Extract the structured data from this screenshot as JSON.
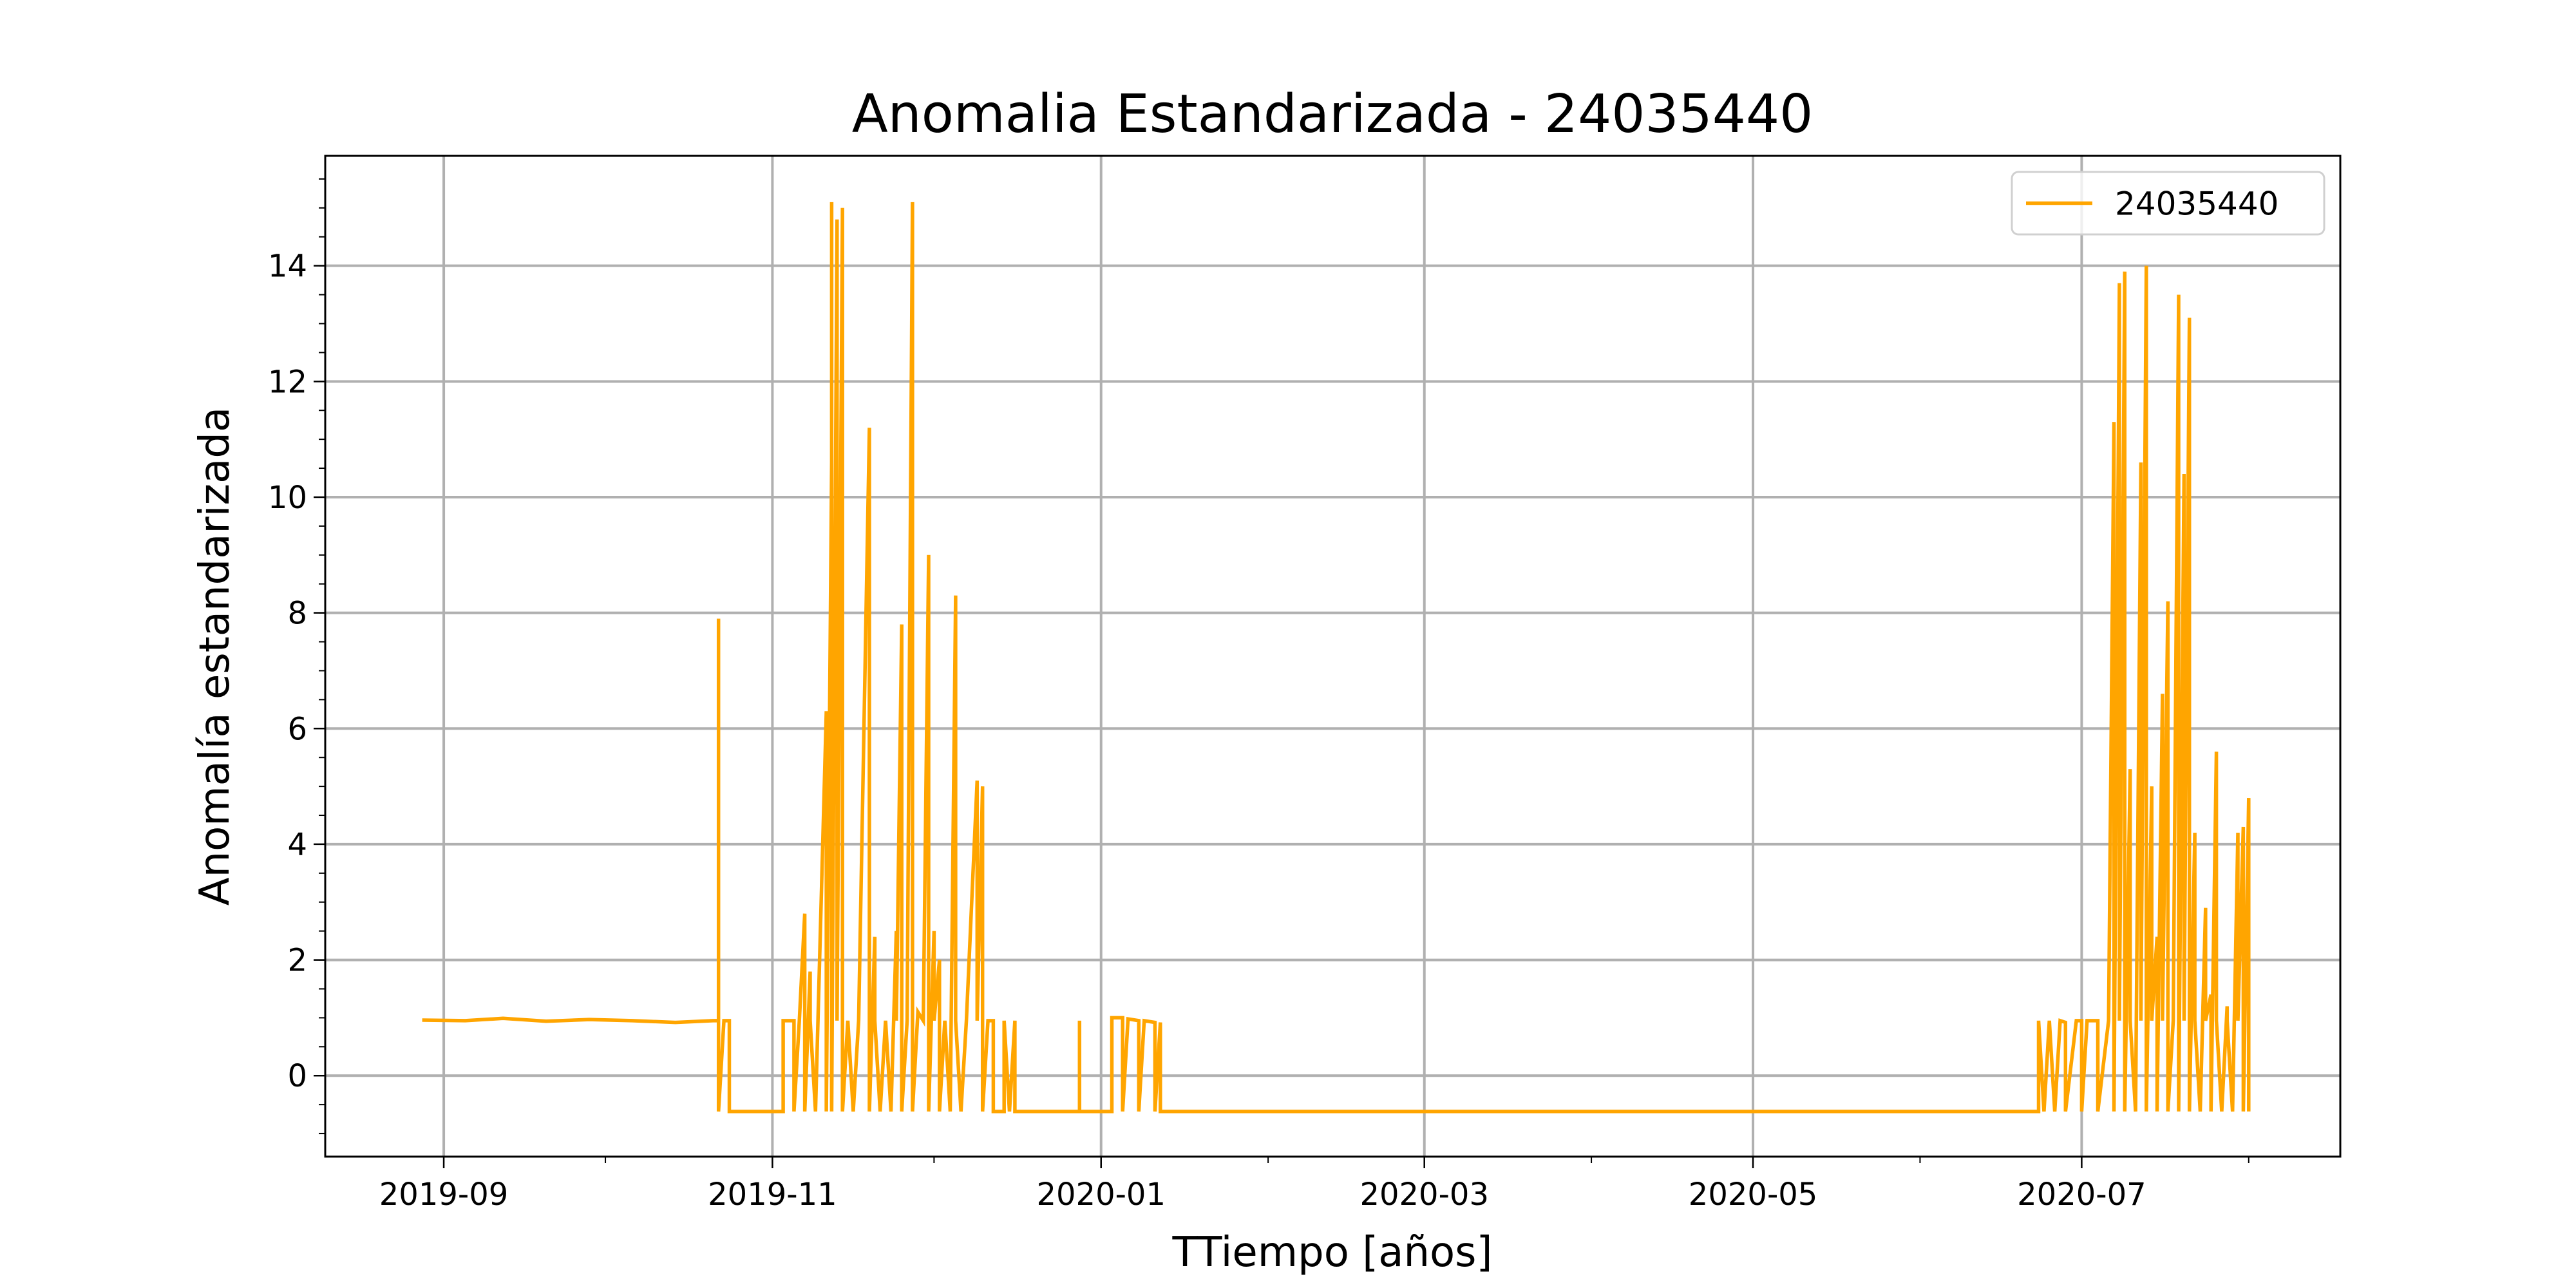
{
  "chart_data": {
    "type": "line",
    "title": "Anomalia Estandarizada - 24035440",
    "xlabel": "TTiempo [años]",
    "ylabel": "Anomalía estandarizada",
    "xlim": [
      "2019-08-10",
      "2020-08-18"
    ],
    "xticks": [
      "2019-09",
      "2019-11",
      "2020-01",
      "2020-03",
      "2020-05",
      "2020-07"
    ],
    "ylim": [
      -1.4,
      15.9
    ],
    "yticks": [
      0,
      2,
      4,
      6,
      8,
      10,
      12,
      14
    ],
    "grid": true,
    "legend": "upper right",
    "x": [
      "2019-08-28",
      "2019-09-05",
      "2019-09-12",
      "2019-09-20",
      "2019-09-28",
      "2019-10-06",
      "2019-10-14",
      "2019-10-21",
      "2019-10-22",
      "2019-10-22",
      "2019-10-22",
      "2019-10-23",
      "2019-10-24",
      "2019-10-24",
      "2019-11-03",
      "2019-11-03",
      "2019-11-05",
      "2019-11-05",
      "2019-11-06",
      "2019-11-07",
      "2019-11-07",
      "2019-11-08",
      "2019-11-08",
      "2019-11-09",
      "2019-11-11",
      "2019-11-11",
      "2019-11-12",
      "2019-11-12",
      "2019-11-12",
      "2019-11-13",
      "2019-11-13",
      "2019-11-14",
      "2019-11-14",
      "2019-11-15",
      "2019-11-16",
      "2019-11-17",
      "2019-11-19",
      "2019-11-19",
      "2019-11-20",
      "2019-11-20",
      "2019-11-21",
      "2019-11-22",
      "2019-11-23",
      "2019-11-24",
      "2019-11-24",
      "2019-11-25",
      "2019-11-25",
      "2019-11-26",
      "2019-11-27",
      "2019-11-27",
      "2019-11-28",
      "2019-11-29",
      "2019-11-30",
      "2019-11-30",
      "2019-12-01",
      "2019-12-01",
      "2019-12-02",
      "2019-12-02",
      "2019-12-03",
      "2019-12-04",
      "2019-12-05",
      "2019-12-05",
      "2019-12-06",
      "2019-12-07",
      "2019-12-09",
      "2019-12-09",
      "2019-12-10",
      "2019-12-10",
      "2019-12-11",
      "2019-12-12",
      "2019-12-12",
      "2019-12-14",
      "2019-12-14",
      "2019-12-15",
      "2019-12-16",
      "2019-12-16",
      "2019-12-28",
      "2019-12-28",
      "2019-12-28",
      "2020-01-03",
      "2020-01-03",
      "2020-01-05",
      "2020-01-05",
      "2020-01-06",
      "2020-01-08",
      "2020-01-08",
      "2020-01-09",
      "2020-01-11",
      "2020-01-11",
      "2020-01-12",
      "2020-01-12",
      "2020-06-23",
      "2020-06-23",
      "2020-06-24",
      "2020-06-25",
      "2020-06-26",
      "2020-06-27",
      "2020-06-28",
      "2020-06-28",
      "2020-06-30",
      "2020-07-01",
      "2020-07-01",
      "2020-07-02",
      "2020-07-04",
      "2020-07-04",
      "2020-07-06",
      "2020-07-07",
      "2020-07-07",
      "2020-07-08",
      "2020-07-08",
      "2020-07-09",
      "2020-07-09",
      "2020-07-10",
      "2020-07-10",
      "2020-07-11",
      "2020-07-12",
      "2020-07-12",
      "2020-07-13",
      "2020-07-13",
      "2020-07-14",
      "2020-07-14",
      "2020-07-15",
      "2020-07-15",
      "2020-07-16",
      "2020-07-16",
      "2020-07-17",
      "2020-07-17",
      "2020-07-18",
      "2020-07-19",
      "2020-07-19",
      "2020-07-20",
      "2020-07-20",
      "2020-07-21",
      "2020-07-21",
      "2020-07-22",
      "2020-07-22",
      "2020-07-23",
      "2020-07-24",
      "2020-07-24",
      "2020-07-25",
      "2020-07-25",
      "2020-07-26",
      "2020-07-26",
      "2020-07-27",
      "2020-07-28",
      "2020-07-28",
      "2020-07-29",
      "2020-07-30",
      "2020-07-30",
      "2020-07-31",
      "2020-07-31",
      "2020-08-01",
      "2020-08-01"
    ],
    "series": [
      {
        "name": "24035440",
        "color": "#ffa500",
        "values": [
          0.96,
          0.95,
          0.99,
          0.94,
          0.97,
          0.95,
          0.92,
          0.95,
          0.95,
          7.9,
          -0.62,
          0.95,
          0.95,
          -0.62,
          -0.62,
          0.95,
          0.95,
          -0.62,
          0.95,
          2.8,
          -0.62,
          1.8,
          0.95,
          -0.62,
          6.3,
          -0.62,
          10.6,
          15.1,
          -0.62,
          14.8,
          0.95,
          15.0,
          -0.62,
          0.95,
          -0.62,
          0.95,
          11.2,
          -0.62,
          2.4,
          0.95,
          -0.62,
          0.95,
          -0.62,
          2.5,
          0.95,
          7.8,
          -0.62,
          0.95,
          15.1,
          -0.62,
          1.1,
          0.95,
          9.0,
          -0.62,
          2.5,
          0.95,
          2.0,
          -0.62,
          0.95,
          -0.62,
          8.3,
          0.95,
          -0.62,
          0.95,
          5.1,
          0.95,
          5.0,
          -0.62,
          0.95,
          0.95,
          -0.62,
          -0.62,
          0.95,
          -0.62,
          0.95,
          -0.62,
          -0.62,
          0.95,
          -0.62,
          -0.62,
          1.0,
          1.0,
          -0.62,
          0.98,
          0.95,
          -0.62,
          0.95,
          0.92,
          -0.62,
          0.92,
          -0.62,
          -0.62,
          0.95,
          -0.62,
          0.95,
          -0.62,
          0.95,
          0.92,
          -0.62,
          0.95,
          0.95,
          -0.62,
          0.95,
          0.95,
          -0.62,
          0.95,
          11.3,
          -0.62,
          13.7,
          0.95,
          13.9,
          -0.62,
          5.3,
          0.95,
          -0.62,
          10.6,
          0.95,
          14.0,
          -0.62,
          5.0,
          0.95,
          2.4,
          -0.62,
          6.6,
          0.95,
          8.2,
          -0.62,
          0.95,
          13.5,
          -0.62,
          10.4,
          0.95,
          13.1,
          -0.62,
          4.2,
          0.95,
          -0.62,
          2.9,
          0.95,
          1.4,
          -0.62,
          5.6,
          0.95,
          -0.62,
          1.2,
          0.95,
          -0.62,
          4.2,
          0.95,
          4.3,
          -0.62,
          4.8,
          -0.62
        ]
      }
    ]
  }
}
